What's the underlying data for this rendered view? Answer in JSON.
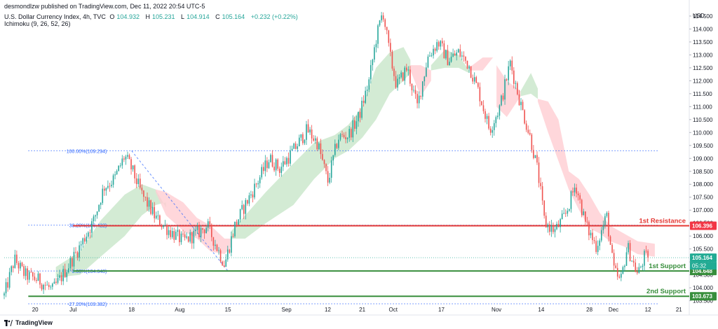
{
  "header": {
    "publisher": "desmondlzw published on TradingView.com, Dec 11, 2022 20:54 UTC-5",
    "symbol": "U.S. Dollar Currency Index, 4h, TVC",
    "o_label": "O",
    "o": "104.932",
    "h_label": "H",
    "h": "105.231",
    "l_label": "L",
    "l": "104.914",
    "c_label": "C",
    "c": "105.164",
    "change": "+0.232 (+0.22%)",
    "indicator": "Ichimoku (9, 26, 52, 26)"
  },
  "footer": {
    "brand": "TradingView"
  },
  "chart_data": {
    "type": "candlestick",
    "title": "U.S. Dollar Currency Index, 4h, TVC",
    "currency_label": "USD",
    "ylim": [
      103.3,
      114.85
    ],
    "y_ticks": [
      "103.500",
      "104.000",
      "104.500",
      "105.000",
      "105.500",
      "106.000",
      "106.500",
      "107.000",
      "107.500",
      "108.000",
      "108.500",
      "109.000",
      "109.500",
      "110.000",
      "110.500",
      "111.000",
      "111.500",
      "112.000",
      "112.500",
      "113.000",
      "113.500",
      "114.000",
      "114.500"
    ],
    "x_ticks": [
      {
        "label": "20",
        "t": 9
      },
      {
        "label": "Jul",
        "t": 20
      },
      {
        "label": "18",
        "t": 37
      },
      {
        "label": "Aug",
        "t": 51
      },
      {
        "label": "15",
        "t": 65
      },
      {
        "label": "Sep",
        "t": 82
      },
      {
        "label": "12",
        "t": 94
      },
      {
        "label": "21",
        "t": 104
      },
      {
        "label": "Oct",
        "t": 113
      },
      {
        "label": "17",
        "t": 127
      },
      {
        "label": "Nov",
        "t": 143
      },
      {
        "label": "14",
        "t": 156
      },
      {
        "label": "28",
        "t": 170
      },
      {
        "label": "Dec",
        "t": 177
      },
      {
        "label": "12",
        "t": 187
      },
      {
        "label": "21",
        "t": 196
      }
    ],
    "path_points": [
      [
        0,
        103.7
      ],
      [
        3,
        105.1
      ],
      [
        6,
        104.5
      ],
      [
        10,
        104.3
      ],
      [
        14,
        103.9
      ],
      [
        18,
        104.7
      ],
      [
        22,
        105.6
      ],
      [
        26,
        106.6
      ],
      [
        29,
        107.9
      ],
      [
        32,
        108.2
      ],
      [
        35,
        109.1
      ],
      [
        37,
        108.6
      ],
      [
        40,
        107.6
      ],
      [
        44,
        106.7
      ],
      [
        48,
        106.2
      ],
      [
        52,
        105.8
      ],
      [
        56,
        106.1
      ],
      [
        59,
        106.4
      ],
      [
        62,
        105.5
      ],
      [
        64,
        104.9
      ],
      [
        67,
        106.4
      ],
      [
        70,
        107.2
      ],
      [
        74,
        108.2
      ],
      [
        77,
        109.0
      ],
      [
        80,
        108.6
      ],
      [
        84,
        109.3
      ],
      [
        88,
        110.1
      ],
      [
        91,
        109.6
      ],
      [
        94,
        108.1
      ],
      [
        97,
        109.8
      ],
      [
        100,
        109.9
      ],
      [
        103,
        110.6
      ],
      [
        106,
        112.0
      ],
      [
        108,
        113.6
      ],
      [
        110,
        114.7
      ],
      [
        112,
        113.0
      ],
      [
        114,
        111.8
      ],
      [
        117,
        112.5
      ],
      [
        120,
        111.0
      ],
      [
        123,
        112.9
      ],
      [
        126,
        113.5
      ],
      [
        129,
        112.8
      ],
      [
        132,
        113.1
      ],
      [
        135,
        112.6
      ],
      [
        138,
        111.5
      ],
      [
        141,
        110.1
      ],
      [
        144,
        111.0
      ],
      [
        147,
        112.7
      ],
      [
        150,
        111.1
      ],
      [
        153,
        109.7
      ],
      [
        155,
        108.5
      ],
      [
        157,
        106.5
      ],
      [
        160,
        106.2
      ],
      [
        163,
        106.8
      ],
      [
        166,
        108.0
      ],
      [
        169,
        106.4
      ],
      [
        172,
        105.6
      ],
      [
        175,
        106.8
      ],
      [
        177,
        104.7
      ],
      [
        179,
        104.2
      ],
      [
        181,
        105.6
      ],
      [
        184,
        104.5
      ],
      [
        186,
        105.2
      ],
      [
        187,
        105.164
      ]
    ],
    "last_price": 105.164,
    "countdown": "05:32",
    "price_tags": [
      {
        "value": 105.164,
        "text": "105.164",
        "color": "#22ab94"
      },
      {
        "value": 104.648,
        "text": "104.648",
        "color": "#388e3c"
      },
      {
        "value": 106.396,
        "text": "106.396",
        "color": "#f23645"
      },
      {
        "value": 103.673,
        "text": "103.673",
        "color": "#388e3c"
      }
    ],
    "horizontal_lines": [
      {
        "value": 106.396,
        "label": "1st Resistance",
        "color": "#e53935",
        "t_start": 20
      },
      {
        "value": 104.648,
        "label": "1st Support",
        "color": "#388e3c",
        "t_start": 20
      },
      {
        "value": 103.673,
        "label": "2nd Support",
        "color": "#388e3c",
        "t_start": 7
      }
    ],
    "fibonacci": {
      "t_start": 7,
      "t_end": 190,
      "color": "#2962ff",
      "levels": [
        {
          "value": 109.294,
          "text": "100.00%(109.294)"
        },
        {
          "value": 106.422,
          "text": "38.20%(106.422)"
        },
        {
          "value": 104.648,
          "text": "0.00%(104.648)"
        },
        {
          "value": 103.382,
          "text": "-27.20%(103.382)"
        }
      ],
      "trend_line": {
        "t1": 37,
        "v1": 109.294,
        "t2": 65,
        "v2": 104.648
      }
    },
    "ichimoku_bullish_segments": [
      [
        [
          15,
          104.4,
          104.8
        ],
        [
          22,
          104.5,
          105.4
        ],
        [
          28,
          105.2,
          106.6
        ],
        [
          35,
          106.0,
          107.6
        ],
        [
          40,
          106.8,
          108.0
        ],
        [
          44,
          107.2,
          107.8
        ],
        [
          47,
          107.3,
          107.1
        ]
      ],
      [
        [
          66,
          105.9,
          106.2
        ],
        [
          70,
          105.9,
          106.8
        ],
        [
          76,
          106.5,
          107.7
        ],
        [
          84,
          107.2,
          108.8
        ],
        [
          90,
          108.2,
          109.6
        ],
        [
          96,
          109.0,
          109.9
        ],
        [
          100,
          109.3,
          110.3
        ],
        [
          104,
          109.8,
          111.0
        ],
        [
          108,
          110.5,
          112.5
        ],
        [
          112,
          111.5,
          113.1
        ],
        [
          116,
          112.0,
          113.3
        ],
        [
          118,
          112.3,
          112.8
        ]
      ],
      [
        [
          124,
          112.4,
          112.6
        ],
        [
          128,
          112.5,
          113.2
        ],
        [
          132,
          112.5,
          113.0
        ],
        [
          135,
          112.3,
          112.4
        ]
      ],
      [
        [
          150,
          111.4,
          111.6
        ],
        [
          153,
          111.5,
          112.3
        ],
        [
          155,
          111.3,
          111.7
        ]
      ]
    ],
    "ichimoku_bearish_segments": [
      [
        [
          44,
          107.7,
          107.8
        ],
        [
          47,
          106.8,
          107.7
        ],
        [
          52,
          106.2,
          107.3
        ],
        [
          56,
          105.9,
          106.7
        ],
        [
          60,
          105.4,
          106.4
        ],
        [
          64,
          105.3,
          105.9
        ],
        [
          66,
          105.6,
          105.9
        ]
      ],
      [
        [
          118,
          112.4,
          112.6
        ],
        [
          121,
          111.4,
          112.6
        ],
        [
          124,
          112.0,
          112.4
        ]
      ],
      [
        [
          135,
          112.4,
          112.5
        ],
        [
          139,
          112.4,
          112.9
        ],
        [
          142,
          112.9,
          112.9
        ]
      ],
      [
        [
          143,
          111.0,
          112.6
        ],
        [
          146,
          110.6,
          112.0
        ],
        [
          150,
          111.4,
          111.6
        ]
      ],
      [
        [
          155,
          111.2,
          111.3
        ],
        [
          158,
          110.0,
          111.2
        ],
        [
          161,
          108.9,
          110.5
        ],
        [
          164,
          107.8,
          108.5
        ],
        [
          167,
          107.0,
          108.2
        ],
        [
          170,
          106.3,
          107.6
        ],
        [
          173,
          106.1,
          106.9
        ],
        [
          176,
          105.8,
          106.4
        ],
        [
          180,
          105.6,
          106.1
        ],
        [
          184,
          105.3,
          105.8
        ],
        [
          189,
          105.2,
          105.7
        ]
      ]
    ]
  }
}
